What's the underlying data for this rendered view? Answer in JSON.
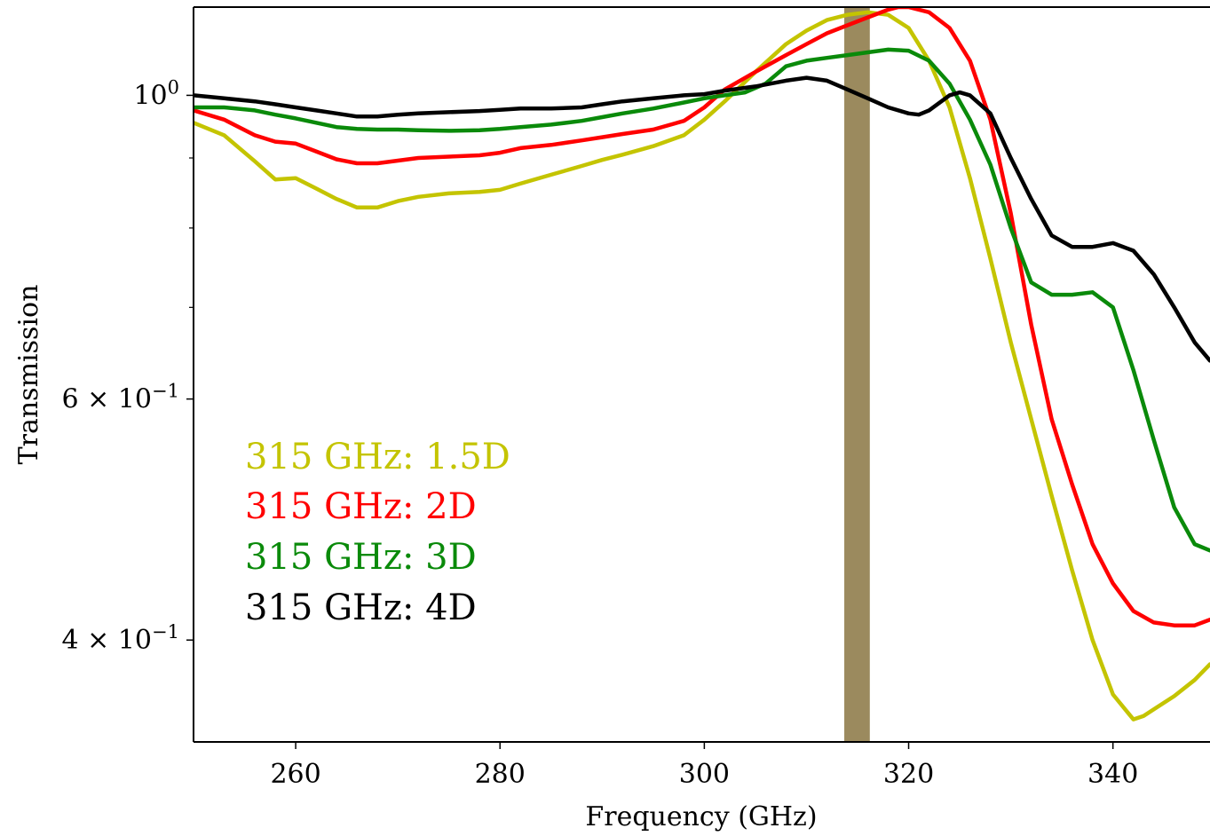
{
  "chart_data": {
    "type": "line",
    "xlabel": "Frequency (GHz)",
    "ylabel": "Transmission",
    "xlim": [
      250,
      349.5
    ],
    "ylim": [
      0.337,
      1.16
    ],
    "yscale": "log",
    "grid": false,
    "legend_placement": "lower-left",
    "x_ticks": [
      260,
      280,
      300,
      320,
      340
    ],
    "y_ticks": [
      {
        "value": 1.0,
        "label": "10^0"
      },
      {
        "value": 0.6,
        "label": "6 × 10^-1"
      },
      {
        "value": 0.4,
        "label": "4 × 10^-1"
      }
    ],
    "y_minor_ticks": [
      0.7,
      0.8,
      0.9
    ],
    "shaded_band": {
      "x_start": 313.7,
      "x_end": 316.2,
      "color": "#9b8a5e"
    },
    "series": [
      {
        "name": "315 GHz: 1.5D",
        "color": "#c4c400",
        "x": [
          250,
          253,
          256,
          258,
          260,
          262,
          264,
          266,
          268,
          270,
          272,
          275,
          278,
          280,
          282,
          285,
          288,
          290,
          292,
          295,
          298,
          300,
          302,
          305,
          308,
          310,
          312,
          314,
          316,
          318,
          320,
          322,
          324,
          326,
          328,
          330,
          332,
          334,
          336,
          338,
          340,
          342,
          343,
          344,
          346,
          348,
          349.5
        ],
        "y": [
          0.955,
          0.935,
          0.895,
          0.868,
          0.87,
          0.855,
          0.84,
          0.828,
          0.828,
          0.837,
          0.843,
          0.848,
          0.85,
          0.853,
          0.862,
          0.875,
          0.888,
          0.897,
          0.905,
          0.918,
          0.935,
          0.96,
          0.99,
          1.04,
          1.09,
          1.115,
          1.135,
          1.145,
          1.15,
          1.145,
          1.12,
          1.06,
          0.98,
          0.87,
          0.76,
          0.66,
          0.58,
          0.51,
          0.45,
          0.4,
          0.365,
          0.35,
          0.352,
          0.356,
          0.364,
          0.374,
          0.384
        ]
      },
      {
        "name": "315 GHz: 2D",
        "color": "#ff0000",
        "x": [
          250,
          253,
          256,
          258,
          260,
          262,
          264,
          266,
          268,
          270,
          272,
          275,
          278,
          280,
          282,
          285,
          288,
          290,
          292,
          295,
          298,
          300,
          302,
          305,
          308,
          310,
          312,
          314,
          316,
          318,
          319,
          320,
          322,
          324,
          326,
          328,
          330,
          332,
          334,
          336,
          338,
          340,
          342,
          344,
          346,
          348,
          349.5
        ],
        "y": [
          0.975,
          0.96,
          0.935,
          0.925,
          0.922,
          0.91,
          0.898,
          0.892,
          0.892,
          0.896,
          0.9,
          0.902,
          0.904,
          0.908,
          0.915,
          0.92,
          0.927,
          0.932,
          0.937,
          0.944,
          0.958,
          0.98,
          1.01,
          1.04,
          1.07,
          1.09,
          1.11,
          1.125,
          1.14,
          1.155,
          1.16,
          1.16,
          1.15,
          1.12,
          1.06,
          0.96,
          0.82,
          0.68,
          0.58,
          0.52,
          0.47,
          0.44,
          0.42,
          0.412,
          0.41,
          0.41,
          0.414
        ]
      },
      {
        "name": "315 GHz: 3D",
        "color": "#0a8a0a",
        "x": [
          250,
          253,
          256,
          258,
          260,
          262,
          264,
          266,
          268,
          270,
          272,
          275,
          278,
          280,
          282,
          285,
          288,
          290,
          292,
          295,
          298,
          300,
          302,
          304,
          306,
          308,
          310,
          312,
          314,
          316,
          318,
          320,
          322,
          324,
          326,
          328,
          330,
          332,
          334,
          336,
          338,
          340,
          342,
          344,
          346,
          348,
          349.5
        ],
        "y": [
          0.98,
          0.98,
          0.975,
          0.968,
          0.962,
          0.955,
          0.948,
          0.945,
          0.944,
          0.944,
          0.943,
          0.942,
          0.943,
          0.945,
          0.948,
          0.952,
          0.958,
          0.964,
          0.97,
          0.978,
          0.988,
          0.995,
          1.0,
          1.005,
          1.02,
          1.05,
          1.06,
          1.065,
          1.07,
          1.075,
          1.08,
          1.078,
          1.06,
          1.02,
          0.96,
          0.89,
          0.8,
          0.73,
          0.715,
          0.715,
          0.718,
          0.7,
          0.63,
          0.56,
          0.5,
          0.47,
          0.465
        ]
      },
      {
        "name": "315 GHz: 4D",
        "color": "#000000",
        "x": [
          250,
          253,
          256,
          258,
          260,
          262,
          264,
          266,
          268,
          270,
          272,
          275,
          278,
          280,
          282,
          285,
          288,
          290,
          292,
          295,
          298,
          300,
          302,
          305,
          308,
          310,
          312,
          314,
          316,
          318,
          320,
          321,
          322,
          324,
          325,
          326,
          328,
          330,
          332,
          334,
          336,
          338,
          340,
          342,
          344,
          346,
          348,
          349.5
        ],
        "y": [
          1.0,
          0.995,
          0.99,
          0.985,
          0.98,
          0.975,
          0.97,
          0.965,
          0.965,
          0.968,
          0.97,
          0.972,
          0.974,
          0.976,
          0.978,
          0.978,
          0.98,
          0.985,
          0.99,
          0.995,
          1.0,
          1.002,
          1.008,
          1.015,
          1.025,
          1.03,
          1.025,
          1.01,
          0.995,
          0.98,
          0.97,
          0.968,
          0.975,
          1.0,
          1.005,
          1.0,
          0.97,
          0.9,
          0.84,
          0.79,
          0.775,
          0.775,
          0.78,
          0.77,
          0.74,
          0.7,
          0.66,
          0.64
        ]
      }
    ]
  }
}
